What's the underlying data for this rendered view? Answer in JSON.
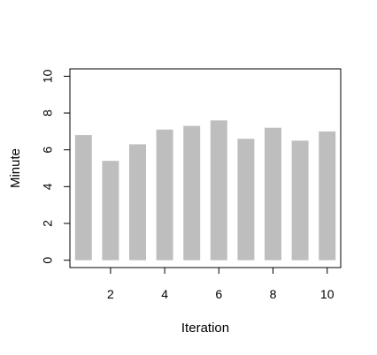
{
  "chart_data": {
    "type": "bar",
    "xlabel": "Iteration",
    "ylabel": "Minute",
    "x": [
      1,
      2,
      3,
      4,
      5,
      6,
      7,
      8,
      9,
      10
    ],
    "values": [
      6.8,
      5.4,
      6.3,
      7.1,
      7.3,
      7.6,
      6.6,
      7.2,
      6.5,
      7.0
    ],
    "xlim": [
      0.5,
      10.5
    ],
    "ylim": [
      -0.4,
      10.4
    ],
    "x_ticks": [
      2,
      4,
      6,
      8,
      10
    ],
    "x_tick_labels": [
      "2",
      "4",
      "6",
      "8",
      "10"
    ],
    "y_ticks": [
      0,
      2,
      4,
      6,
      8,
      10
    ],
    "y_tick_labels": [
      "0",
      "2",
      "4",
      "6",
      "8",
      "10"
    ],
    "bar_color": "#bebebe",
    "grid": false,
    "legend": "none"
  }
}
